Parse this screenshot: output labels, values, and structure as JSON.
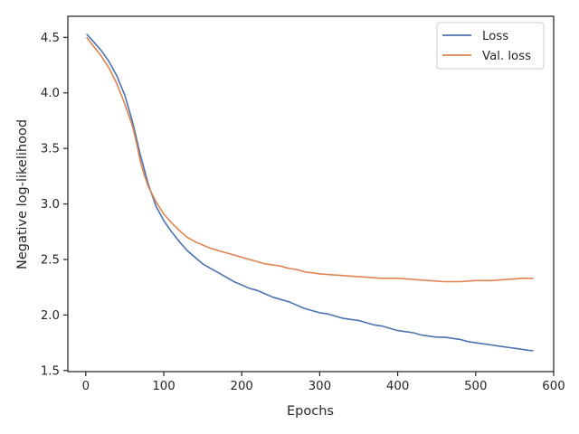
{
  "chart_data": {
    "type": "line",
    "xlabel": "Epochs",
    "ylabel": "Negative log-likelihood",
    "xlim": [
      -23,
      600
    ],
    "ylim": [
      1.49,
      4.69
    ],
    "xticks": [
      0,
      100,
      200,
      300,
      400,
      500,
      600
    ],
    "yticks": [
      1.5,
      2.0,
      2.5,
      3.0,
      3.5,
      4.0,
      4.5
    ],
    "xtick_labels": [
      "0",
      "100",
      "200",
      "300",
      "400",
      "500",
      "600"
    ],
    "ytick_labels": [
      "1.5",
      "2.0",
      "2.5",
      "3.0",
      "3.5",
      "4.0",
      "4.5"
    ],
    "grid": false,
    "legend_position": "upper right",
    "series": [
      {
        "name": "Loss",
        "color": "#4c72b0",
        "x": [
          1,
          10,
          20,
          30,
          40,
          50,
          60,
          70,
          80,
          90,
          100,
          110,
          120,
          130,
          140,
          150,
          160,
          170,
          180,
          190,
          200,
          210,
          220,
          230,
          240,
          250,
          260,
          270,
          280,
          290,
          300,
          310,
          320,
          330,
          340,
          350,
          360,
          370,
          380,
          390,
          400,
          410,
          420,
          430,
          440,
          450,
          460,
          470,
          480,
          490,
          500,
          510,
          520,
          530,
          540,
          550,
          560,
          570,
          574
        ],
        "y": [
          4.53,
          4.46,
          4.38,
          4.28,
          4.15,
          3.98,
          3.74,
          3.44,
          3.18,
          2.98,
          2.85,
          2.75,
          2.66,
          2.58,
          2.52,
          2.46,
          2.42,
          2.38,
          2.34,
          2.3,
          2.27,
          2.24,
          2.22,
          2.19,
          2.16,
          2.14,
          2.12,
          2.09,
          2.06,
          2.04,
          2.02,
          2.01,
          1.99,
          1.97,
          1.96,
          1.95,
          1.93,
          1.91,
          1.9,
          1.88,
          1.86,
          1.85,
          1.84,
          1.82,
          1.81,
          1.8,
          1.8,
          1.79,
          1.78,
          1.76,
          1.75,
          1.74,
          1.73,
          1.72,
          1.71,
          1.7,
          1.69,
          1.68,
          1.68
        ]
      },
      {
        "name": "Val. loss",
        "color": "#dd8452",
        "x": [
          1,
          10,
          20,
          30,
          40,
          50,
          60,
          65,
          70,
          75,
          80,
          90,
          100,
          110,
          120,
          130,
          140,
          150,
          160,
          170,
          180,
          190,
          200,
          210,
          220,
          230,
          240,
          250,
          260,
          270,
          280,
          290,
          300,
          320,
          340,
          360,
          380,
          400,
          420,
          440,
          460,
          480,
          500,
          520,
          540,
          560,
          574
        ],
        "y": [
          4.5,
          4.42,
          4.33,
          4.22,
          4.08,
          3.9,
          3.7,
          3.55,
          3.38,
          3.26,
          3.16,
          3.02,
          2.91,
          2.83,
          2.76,
          2.7,
          2.66,
          2.63,
          2.6,
          2.58,
          2.56,
          2.54,
          2.52,
          2.5,
          2.48,
          2.46,
          2.45,
          2.44,
          2.42,
          2.41,
          2.39,
          2.38,
          2.37,
          2.36,
          2.35,
          2.34,
          2.33,
          2.33,
          2.32,
          2.31,
          2.3,
          2.3,
          2.31,
          2.31,
          2.32,
          2.33,
          2.33
        ]
      }
    ]
  }
}
